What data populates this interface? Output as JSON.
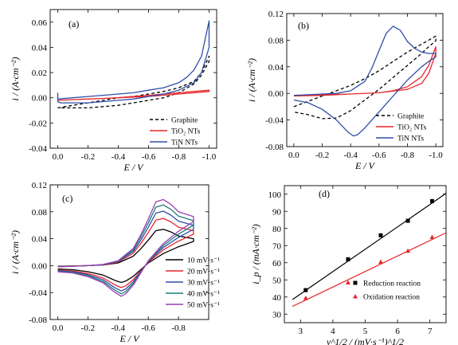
{
  "chart_data": [
    {
      "type": "line",
      "panel": "(a)",
      "xlabel": "E / V",
      "ylabel": "i / (A·cm⁻²)",
      "xlim": [
        0.05,
        -1.05
      ],
      "ylim": [
        -0.04,
        0.07
      ],
      "xticks": [
        "0.0",
        "-0.2",
        "-0.4",
        "-0.6",
        "-0.8",
        "-1.0"
      ],
      "xtick_values": [
        0,
        -0.2,
        -0.4,
        -0.6,
        -0.8,
        -1.0
      ],
      "yticks": [
        "-0.04",
        "-0.02",
        "0.00",
        "0.02",
        "0.04",
        "0.06"
      ],
      "ytick_values": [
        -0.04,
        -0.02,
        0,
        0.02,
        0.04,
        0.06
      ],
      "legend_position": "bottom-right",
      "series": [
        {
          "name": "Graphite",
          "color": "#000000",
          "dash": "dashed",
          "x": [
            0.0,
            -0.1,
            -0.2,
            -0.3,
            -0.4,
            -0.5,
            -0.6,
            -0.7,
            -0.8,
            -0.9,
            -0.95,
            -1.0,
            -1.0,
            -0.95,
            -0.9,
            -0.8,
            -0.7,
            -0.6,
            -0.5,
            -0.4,
            -0.3,
            -0.2,
            -0.1,
            0.0
          ],
          "y": [
            -0.008,
            -0.006,
            -0.004,
            -0.002,
            0.0,
            0.001,
            0.003,
            0.005,
            0.008,
            0.013,
            0.02,
            0.033,
            0.029,
            0.018,
            0.011,
            0.004,
            0.0,
            -0.002,
            -0.004,
            -0.006,
            -0.007,
            -0.008,
            -0.008,
            -0.008
          ]
        },
        {
          "name": "TiO₂ NTs",
          "color": "#e8262a",
          "dash": "solid",
          "x": [
            0.0,
            -0.2,
            -0.4,
            -0.6,
            -0.8,
            -1.0,
            -1.0,
            -0.8,
            -0.6,
            -0.4,
            -0.2,
            0.0
          ],
          "y": [
            -0.002,
            -0.001,
            0.0,
            0.002,
            0.004,
            0.006,
            0.005,
            0.003,
            0.001,
            0.0,
            -0.001,
            -0.002
          ]
        },
        {
          "name": "TiN NTs",
          "color": "#2f4fa8",
          "dash": "solid",
          "x": [
            0.0,
            -0.1,
            -0.2,
            -0.3,
            -0.4,
            -0.5,
            -0.6,
            -0.7,
            -0.8,
            -0.85,
            -0.9,
            -0.95,
            -1.0,
            -1.0,
            -0.95,
            -0.9,
            -0.8,
            -0.7,
            -0.6,
            -0.5,
            -0.4,
            -0.3,
            -0.2,
            -0.1,
            -0.02,
            0.0,
            0.0
          ],
          "y": [
            -0.001,
            0.0,
            0.001,
            0.002,
            0.003,
            0.004,
            0.006,
            0.008,
            0.012,
            0.016,
            0.022,
            0.033,
            0.061,
            0.04,
            0.02,
            0.012,
            0.006,
            0.003,
            0.001,
            -0.001,
            -0.002,
            -0.003,
            -0.004,
            -0.004,
            -0.004,
            -0.003,
            0.004
          ]
        }
      ]
    },
    {
      "type": "line",
      "panel": "(b)",
      "xlabel": "E / V",
      "ylabel": "i / (A·cm⁻²)",
      "xlim": [
        0.05,
        -1.05
      ],
      "ylim": [
        -0.08,
        0.12
      ],
      "xticks": [
        "0.0",
        "-0.2",
        "-0.4",
        "-0.6",
        "-0.8",
        "-1.0"
      ],
      "xtick_values": [
        0,
        -0.2,
        -0.4,
        -0.6,
        -0.8,
        -1.0
      ],
      "yticks": [
        "-0.08",
        "-0.04",
        "0.00",
        "0.04",
        "0.08",
        "0.12"
      ],
      "ytick_values": [
        -0.08,
        -0.04,
        0,
        0.04,
        0.08,
        0.12
      ],
      "legend_position": "bottom-right",
      "series": [
        {
          "name": "Graphite",
          "color": "#000000",
          "dash": "dashed",
          "x": [
            0.0,
            -0.1,
            -0.2,
            -0.3,
            -0.4,
            -0.5,
            -0.6,
            -0.7,
            -0.8,
            -0.9,
            -0.95,
            -1.0,
            -1.0,
            -0.95,
            -0.9,
            -0.8,
            -0.7,
            -0.6,
            -0.5,
            -0.4,
            -0.3,
            -0.2,
            -0.1,
            0.0
          ],
          "y": [
            -0.02,
            -0.012,
            -0.004,
            0.004,
            0.012,
            0.022,
            0.034,
            0.048,
            0.062,
            0.074,
            0.08,
            0.086,
            0.079,
            0.07,
            0.06,
            0.042,
            0.024,
            0.006,
            -0.01,
            -0.026,
            -0.037,
            -0.038,
            -0.032,
            -0.028
          ]
        },
        {
          "name": "TiO₂ NTs",
          "color": "#e8262a",
          "dash": "solid",
          "x": [
            0.0,
            -0.2,
            -0.4,
            -0.6,
            -0.7,
            -0.8,
            -0.9,
            -0.95,
            -1.0,
            -1.0,
            -0.95,
            -0.9,
            -0.8,
            -0.6,
            -0.4,
            -0.2,
            0.0
          ],
          "y": [
            -0.004,
            -0.003,
            -0.001,
            0.001,
            0.004,
            0.01,
            0.025,
            0.042,
            0.07,
            0.06,
            0.03,
            0.015,
            0.006,
            0.001,
            -0.001,
            -0.002,
            -0.004
          ]
        },
        {
          "name": "TiN NTs",
          "color": "#2f4fa8",
          "dash": "solid",
          "x": [
            0.0,
            -0.1,
            -0.2,
            -0.3,
            -0.4,
            -0.5,
            -0.55,
            -0.6,
            -0.65,
            -0.7,
            -0.75,
            -0.8,
            -0.85,
            -0.9,
            -0.95,
            -1.0,
            -1.0,
            -0.95,
            -0.9,
            -0.8,
            -0.7,
            -0.6,
            -0.55,
            -0.5,
            -0.45,
            -0.42,
            -0.38,
            -0.3,
            -0.2,
            -0.1,
            0.0
          ],
          "y": [
            -0.003,
            -0.002,
            -0.001,
            0.0,
            0.004,
            0.018,
            0.038,
            0.064,
            0.09,
            0.101,
            0.095,
            0.078,
            0.068,
            0.062,
            0.06,
            0.06,
            0.055,
            0.048,
            0.04,
            0.02,
            -0.004,
            -0.028,
            -0.04,
            -0.052,
            -0.062,
            -0.064,
            -0.058,
            -0.04,
            -0.024,
            -0.014,
            -0.01
          ]
        }
      ]
    },
    {
      "type": "line",
      "panel": "(c)",
      "xlabel": "E / V",
      "ylabel": "i / (A·cm⁻²)",
      "xlim": [
        0.05,
        -1.0
      ],
      "ylim": [
        -0.08,
        0.12
      ],
      "xticks": [
        "0.0",
        "-0.2",
        "-0.4",
        "-0.6",
        "-0.8"
      ],
      "xtick_values": [
        0,
        -0.2,
        -0.4,
        -0.6,
        -0.8
      ],
      "yticks": [
        "-0.08",
        "-0.04",
        "0.00",
        "0.04",
        "0.08",
        "0.12"
      ],
      "ytick_values": [
        -0.08,
        -0.04,
        0,
        0.04,
        0.08,
        0.12
      ],
      "legend_position": "bottom-right",
      "series": [
        {
          "name": "10 mV·s⁻¹",
          "color": "#000000",
          "dash": "solid",
          "scale": 1.0
        },
        {
          "name": "20 mV·s⁻¹",
          "color": "#e8262a",
          "dash": "solid",
          "scale": 1.3
        },
        {
          "name": "30 mV·s⁻¹",
          "color": "#2f4fa8",
          "dash": "solid",
          "scale": 1.5
        },
        {
          "name": "40 mV·s⁻¹",
          "color": "#1f7a7a",
          "dash": "solid",
          "scale": 1.67
        },
        {
          "name": "50 mV·s⁻¹",
          "color": "#9b3fb5",
          "dash": "solid",
          "scale": 1.82
        }
      ],
      "base_cycle": {
        "x": [
          0.0,
          -0.1,
          -0.2,
          -0.3,
          -0.4,
          -0.5,
          -0.55,
          -0.6,
          -0.65,
          -0.7,
          -0.75,
          -0.8,
          -0.9,
          -0.9,
          -0.85,
          -0.8,
          -0.7,
          -0.6,
          -0.55,
          -0.5,
          -0.45,
          -0.42,
          -0.38,
          -0.3,
          -0.2,
          -0.1,
          0.0
        ],
        "y": [
          -0.001,
          -0.0005,
          0.0,
          0.001,
          0.004,
          0.014,
          0.025,
          0.038,
          0.052,
          0.054,
          0.05,
          0.044,
          0.04,
          0.036,
          0.032,
          0.028,
          0.018,
          0.004,
          -0.006,
          -0.016,
          -0.023,
          -0.025,
          -0.022,
          -0.014,
          -0.009,
          -0.006,
          -0.005
        ]
      }
    },
    {
      "type": "scatter",
      "panel": "(d)",
      "xlabel": "ν^1/2 / (mV·s⁻¹)^1/2",
      "ylabel": "i_p / (mA·cm⁻²)",
      "xlim": [
        2.5,
        7.5
      ],
      "ylim": [
        25,
        105
      ],
      "xticks": [
        "3",
        "4",
        "5",
        "6",
        "7"
      ],
      "xtick_values": [
        3,
        4,
        5,
        6,
        7
      ],
      "yticks": [
        "30",
        "40",
        "50",
        "60",
        "70",
        "80",
        "90",
        "100"
      ],
      "ytick_values": [
        30,
        40,
        50,
        60,
        70,
        80,
        90,
        100
      ],
      "legend_position": "bottom-right",
      "series": [
        {
          "name": "Reduction reaction",
          "color": "#000000",
          "marker": "square",
          "x": [
            3.16,
            4.47,
            5.48,
            6.32,
            7.07
          ],
          "y": [
            44,
            62,
            76,
            84.5,
            96
          ],
          "fit": {
            "x": [
              2.75,
              7.5
            ],
            "y": [
              38.5,
              100.5
            ]
          }
        },
        {
          "name": "Oxidation reaction",
          "color": "#e8262a",
          "marker": "triangle",
          "x": [
            3.16,
            4.47,
            5.48,
            6.32,
            7.07
          ],
          "y": [
            39.5,
            48.5,
            60.5,
            67,
            75
          ],
          "fit": {
            "x": [
              2.75,
              7.5
            ],
            "y": [
              34.5,
              77.5
            ]
          }
        }
      ]
    }
  ]
}
